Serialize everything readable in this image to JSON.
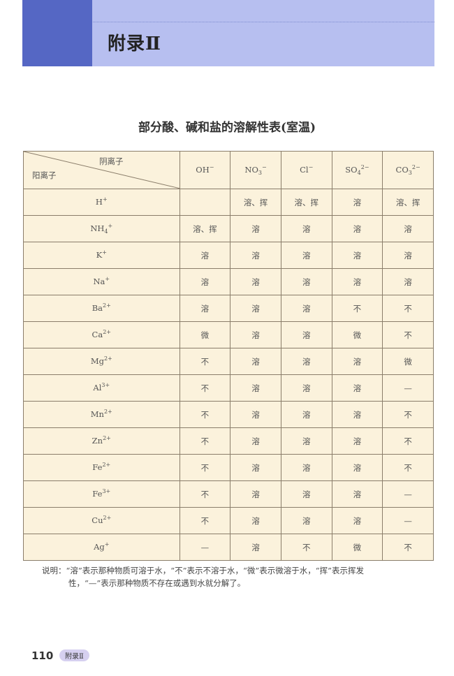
{
  "header": {
    "title": "附录Ⅱ",
    "colors": {
      "band": "#b7bff0",
      "strip": "#5567c4"
    }
  },
  "table": {
    "title": "部分酸、碱和盐的溶解性表(室温)",
    "corner": {
      "anion_label": "阴离子",
      "cation_label": "阳离子"
    },
    "anions": [
      {
        "base": "OH",
        "sub": "",
        "sup": "−"
      },
      {
        "base": "NO",
        "sub": "3",
        "sup": "−"
      },
      {
        "base": "Cl",
        "sub": "",
        "sup": "−"
      },
      {
        "base": "SO",
        "sub": "4",
        "sup": "2−"
      },
      {
        "base": "CO",
        "sub": "3",
        "sup": "2−"
      }
    ],
    "rows": [
      {
        "cation": {
          "base": "H",
          "sub": "",
          "sup": "+"
        },
        "cells": [
          "",
          "溶、挥",
          "溶、挥",
          "溶",
          "溶、挥"
        ]
      },
      {
        "cation": {
          "base": "NH",
          "sub": "4",
          "sup": "+"
        },
        "cells": [
          "溶、挥",
          "溶",
          "溶",
          "溶",
          "溶"
        ]
      },
      {
        "cation": {
          "base": "K",
          "sub": "",
          "sup": "+"
        },
        "cells": [
          "溶",
          "溶",
          "溶",
          "溶",
          "溶"
        ]
      },
      {
        "cation": {
          "base": "Na",
          "sub": "",
          "sup": "+"
        },
        "cells": [
          "溶",
          "溶",
          "溶",
          "溶",
          "溶"
        ]
      },
      {
        "cation": {
          "base": "Ba",
          "sub": "",
          "sup": "2+"
        },
        "cells": [
          "溶",
          "溶",
          "溶",
          "不",
          "不"
        ]
      },
      {
        "cation": {
          "base": "Ca",
          "sub": "",
          "sup": "2+"
        },
        "cells": [
          "微",
          "溶",
          "溶",
          "微",
          "不"
        ]
      },
      {
        "cation": {
          "base": "Mg",
          "sub": "",
          "sup": "2+"
        },
        "cells": [
          "不",
          "溶",
          "溶",
          "溶",
          "微"
        ]
      },
      {
        "cation": {
          "base": "Al",
          "sub": "",
          "sup": "3+"
        },
        "cells": [
          "不",
          "溶",
          "溶",
          "溶",
          "—"
        ]
      },
      {
        "cation": {
          "base": "Mn",
          "sub": "",
          "sup": "2+"
        },
        "cells": [
          "不",
          "溶",
          "溶",
          "溶",
          "不"
        ]
      },
      {
        "cation": {
          "base": "Zn",
          "sub": "",
          "sup": "2+"
        },
        "cells": [
          "不",
          "溶",
          "溶",
          "溶",
          "不"
        ]
      },
      {
        "cation": {
          "base": "Fe",
          "sub": "",
          "sup": "2+"
        },
        "cells": [
          "不",
          "溶",
          "溶",
          "溶",
          "不"
        ]
      },
      {
        "cation": {
          "base": "Fe",
          "sub": "",
          "sup": "3+"
        },
        "cells": [
          "不",
          "溶",
          "溶",
          "溶",
          "—"
        ]
      },
      {
        "cation": {
          "base": "Cu",
          "sub": "",
          "sup": "2+"
        },
        "cells": [
          "不",
          "溶",
          "溶",
          "溶",
          "—"
        ]
      },
      {
        "cation": {
          "base": "Ag",
          "sub": "",
          "sup": "+"
        },
        "cells": [
          "—",
          "溶",
          "不",
          "微",
          "不"
        ]
      }
    ]
  },
  "note": {
    "line1": "说明：“溶”表示那种物质可溶于水，“不”表示不溶于水，“微”表示微溶于水，“挥”表示挥发",
    "line2": "性，“—”表示那种物质不存在或遇到水就分解了。"
  },
  "footer": {
    "page_number": "110",
    "section": "附录Ⅱ"
  }
}
